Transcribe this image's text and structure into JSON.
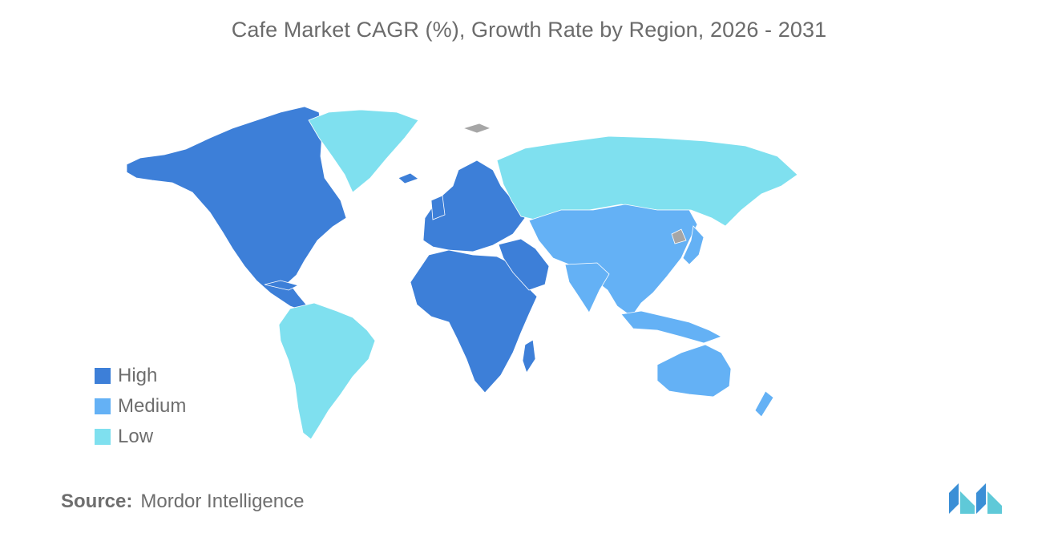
{
  "title": "Cafe Market CAGR (%), Growth Rate by Region, 2026 - 2031",
  "legend": [
    {
      "label": "High",
      "color": "#3d7fd8"
    },
    {
      "label": "Medium",
      "color": "#64b1f5"
    },
    {
      "label": "Low",
      "color": "#7fe0ef"
    }
  ],
  "colors": {
    "no_data": "#a6a6a6",
    "text": "#6e6e6e"
  },
  "regions": [
    {
      "name": "North America",
      "level": "High"
    },
    {
      "name": "Europe",
      "level": "High"
    },
    {
      "name": "Middle East and Africa",
      "level": "High"
    },
    {
      "name": "Asia-Pacific",
      "level": "Medium"
    },
    {
      "name": "South America",
      "level": "Low"
    },
    {
      "name": "Russia",
      "level": "Low"
    },
    {
      "name": "Greenland",
      "level": "Low"
    }
  ],
  "source": {
    "label": "Source:",
    "value": "Mordor Intelligence"
  },
  "logo": "mordor-intelligence-logo"
}
